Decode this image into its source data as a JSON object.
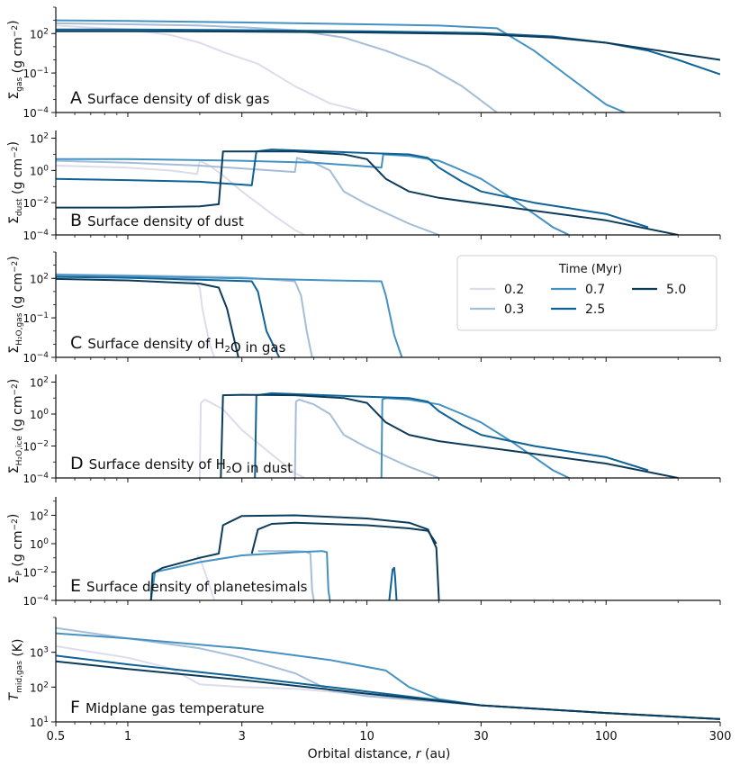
{
  "colors": {
    "0.2": "#dcdcec",
    "0.3": "#a4bdd8",
    "0.7": "#4592c2",
    "2.5": "#0f6296",
    "5.0": "#0d3b5a",
    "axis": "#111111"
  },
  "figure": {
    "xlabel": "Orbital distance, r (au)",
    "xlim": [
      0.5,
      300
    ],
    "xticks": [
      {
        "value": 0.5,
        "label": "0.5"
      },
      {
        "value": 1,
        "label": "1"
      },
      {
        "value": 3,
        "label": "3"
      },
      {
        "value": 10,
        "label": "10"
      },
      {
        "value": 30,
        "label": "30"
      },
      {
        "value": 100,
        "label": "100"
      },
      {
        "value": 300,
        "label": "300"
      }
    ]
  },
  "legend": {
    "title": "Time (Myr)",
    "entries": [
      {
        "label": "0.2",
        "color": "#dcdcec"
      },
      {
        "label": "0.3",
        "color": "#a4bdd8"
      },
      {
        "label": "0.7",
        "color": "#4592c2"
      },
      {
        "label": "2.5",
        "color": "#0f6296"
      },
      {
        "label": "5.0",
        "color": "#0d3b5a"
      }
    ]
  },
  "chart_data": [
    {
      "type": "line",
      "panel": "A",
      "title": "Surface density of disk gas",
      "ylabel": "Σgas (g cm−2)",
      "yscale": "log",
      "ylim": [
        0.0001,
        10000
      ],
      "ytick_labels": [
        "10^2",
        "10^-1",
        "10^-4"
      ],
      "series": [
        {
          "name": "0.2",
          "x": [
            0.5,
            1,
            1.5,
            2,
            2.5,
            3.5,
            5,
            7,
            10
          ],
          "y": [
            400,
            200,
            80,
            20,
            4,
            0.5,
            0.01,
            0.0005,
            0.0001
          ]
        },
        {
          "name": "0.3",
          "x": [
            0.5,
            1,
            2,
            3,
            5,
            8,
            12,
            18,
            25,
            35
          ],
          "y": [
            600,
            500,
            400,
            300,
            180,
            50,
            5,
            0.3,
            0.01,
            0.0001
          ]
        },
        {
          "name": "0.7",
          "x": [
            0.5,
            1,
            3,
            10,
            20,
            35,
            50,
            70,
            100,
            120
          ],
          "y": [
            1000,
            900,
            700,
            500,
            400,
            250,
            5,
            0.05,
            0.0004,
            0.0001
          ]
        },
        {
          "name": "2.5",
          "x": [
            0.5,
            1,
            3,
            10,
            30,
            60,
            100,
            150,
            200,
            300
          ],
          "y": [
            200,
            200,
            180,
            150,
            110,
            60,
            20,
            5,
            1,
            0.08
          ]
        },
        {
          "name": "5.0",
          "x": [
            0.5,
            1,
            3,
            10,
            30,
            60,
            100,
            200,
            300
          ],
          "y": [
            150,
            150,
            140,
            120,
            90,
            50,
            20,
            3,
            1
          ]
        }
      ]
    },
    {
      "type": "line",
      "panel": "B",
      "title": "Surface density of dust",
      "ylabel": "Σdust (g cm−2)",
      "yscale": "log",
      "ylim": [
        0.0001,
        300
      ],
      "ytick_labels": [
        "10^2",
        "10^0",
        "10^-2",
        "10^-4"
      ],
      "series": [
        {
          "name": "0.2",
          "x": [
            0.5,
            1,
            1.5,
            1.95,
            2.0,
            2.2,
            2.5,
            3,
            4,
            5,
            5.5
          ],
          "y": [
            2,
            1.5,
            1,
            0.6,
            4,
            2,
            0.5,
            0.05,
            0.002,
            0.0002,
            0.0001
          ]
        },
        {
          "name": "0.3",
          "x": [
            0.5,
            1,
            2,
            4,
            5.0,
            5.1,
            6,
            7,
            8,
            10,
            15,
            20
          ],
          "y": [
            4,
            3,
            2,
            1,
            0.8,
            6,
            3,
            1,
            0.05,
            0.008,
            0.0005,
            0.0001
          ]
        },
        {
          "name": "0.7",
          "x": [
            0.5,
            1,
            3,
            6,
            9,
            11.5,
            11.7,
            15,
            20,
            25,
            30,
            40,
            50,
            60,
            70
          ],
          "y": [
            5,
            5,
            4,
            3,
            2,
            1.5,
            10,
            8,
            4,
            1,
            0.3,
            0.02,
            0.002,
            0.0003,
            0.0001
          ]
        },
        {
          "name": "2.5",
          "x": [
            0.5,
            1,
            2,
            3.3,
            3.45,
            4,
            10,
            15,
            18,
            20,
            25,
            30,
            50,
            100,
            150
          ],
          "y": [
            0.3,
            0.25,
            0.2,
            0.12,
            15,
            20,
            12,
            10,
            6,
            1.5,
            0.2,
            0.05,
            0.01,
            0.002,
            0.0003
          ]
        },
        {
          "name": "5.0",
          "x": [
            0.5,
            1,
            2,
            2.4,
            2.5,
            5,
            8,
            10,
            12,
            15,
            20,
            40,
            100,
            200
          ],
          "y": [
            0.005,
            0.005,
            0.006,
            0.008,
            15,
            15,
            10,
            5,
            0.3,
            0.05,
            0.02,
            0.005,
            0.0008,
            0.0001
          ]
        }
      ]
    },
    {
      "type": "line",
      "panel": "C",
      "title": "Surface density of H2O in gas",
      "ylabel": "ΣH2O,gas (g cm−2)",
      "yscale": "log",
      "ylim": [
        0.0001,
        10000
      ],
      "ytick_labels": [
        "10^2",
        "10^-1",
        "10^-4"
      ],
      "series": [
        {
          "name": "0.2",
          "x": [
            0.5,
            1,
            1.5,
            1.9,
            2.0,
            2.05,
            2.2,
            2.3
          ],
          "y": [
            150,
            120,
            90,
            60,
            20,
            0.5,
            0.001,
            0.0001
          ]
        },
        {
          "name": "0.3",
          "x": [
            0.5,
            1,
            3,
            5.0,
            5.3,
            5.6,
            5.9
          ],
          "y": [
            200,
            170,
            120,
            60,
            5,
            0.01,
            0.0001
          ]
        },
        {
          "name": "0.7",
          "x": [
            0.5,
            1,
            3,
            7,
            11.5,
            12,
            13,
            14
          ],
          "y": [
            180,
            150,
            100,
            70,
            60,
            5,
            0.005,
            0.0001
          ]
        },
        {
          "name": "2.5",
          "x": [
            0.5,
            1,
            2,
            3.3,
            3.5,
            3.8,
            4.3
          ],
          "y": [
            130,
            110,
            80,
            60,
            10,
            0.01,
            0.0001
          ]
        },
        {
          "name": "5.0",
          "x": [
            0.5,
            1,
            2,
            2.4,
            2.6,
            2.9
          ],
          "y": [
            90,
            70,
            40,
            20,
            0.5,
            0.0001
          ]
        }
      ]
    },
    {
      "type": "line",
      "panel": "D",
      "title": "Surface density of H2O in dust",
      "ylabel": "ΣH2O,ice (g cm−2)",
      "yscale": "log",
      "ylim": [
        0.0001,
        300
      ],
      "ytick_labels": [
        "10^2",
        "10^0",
        "10^-2",
        "10^-4"
      ],
      "series": [
        {
          "name": "0.2",
          "x": [
            2.0,
            2.02,
            2.1,
            2.5,
            3,
            4,
            5,
            5.5
          ],
          "y": [
            0.0001,
            5,
            8,
            2,
            0.1,
            0.003,
            0.0002,
            0.0001
          ]
        },
        {
          "name": "0.3",
          "x": [
            5.0,
            5.05,
            5.2,
            6,
            7,
            8,
            10,
            15,
            20
          ],
          "y": [
            0.0001,
            6,
            8,
            4,
            1,
            0.05,
            0.008,
            0.0005,
            0.0001
          ]
        },
        {
          "name": "0.7",
          "x": [
            11.5,
            11.6,
            12,
            15,
            20,
            25,
            30,
            40,
            50,
            60,
            70
          ],
          "y": [
            0.0001,
            8,
            10,
            8,
            4,
            1,
            0.3,
            0.02,
            0.002,
            0.0003,
            0.0001
          ]
        },
        {
          "name": "2.5",
          "x": [
            3.4,
            3.45,
            4,
            10,
            15,
            18,
            20,
            25,
            30,
            50,
            100,
            150
          ],
          "y": [
            0.0001,
            15,
            20,
            12,
            10,
            6,
            1.5,
            0.2,
            0.05,
            0.01,
            0.002,
            0.0003
          ]
        },
        {
          "name": "5.0",
          "x": [
            2.45,
            2.5,
            3,
            5,
            8,
            10,
            12,
            15,
            20,
            40,
            100,
            200
          ],
          "y": [
            0.0001,
            15,
            16,
            15,
            10,
            5,
            0.3,
            0.05,
            0.02,
            0.005,
            0.0008,
            0.0001
          ]
        }
      ]
    },
    {
      "type": "line",
      "panel": "E",
      "title": "Surface density of planetesimals",
      "ylabel": "ΣP (g cm−2)",
      "yscale": "log",
      "ylim": [
        0.0001,
        2000
      ],
      "ytick_labels": [
        "10^2",
        "10^0",
        "10^-2",
        "10^-4"
      ],
      "series": [
        {
          "name": "0.2",
          "x": [
            1.95,
            2.0,
            2.1,
            2.2,
            2.3
          ],
          "y": [
            0.15,
            0.1,
            0.01,
            0.001,
            0.0001
          ]
        },
        {
          "name": "0.3",
          "x": [
            3.5,
            5,
            5.5,
            5.8,
            5.9,
            6.0
          ],
          "y": [
            0.3,
            0.3,
            0.28,
            0.2,
            0.0005,
            0.0001
          ]
        },
        {
          "name": "0.7",
          "x": [
            1.25,
            1.3,
            2,
            3,
            5,
            6.5,
            6.8,
            6.9,
            7.0
          ],
          "y": [
            0.0001,
            0.01,
            0.05,
            0.15,
            0.25,
            0.3,
            0.25,
            0.0005,
            0.0001
          ]
        },
        {
          "name": "2.5",
          "x": [
            12.4,
            12.8,
            13.0,
            13.1,
            13.3
          ],
          "y": [
            0.0001,
            0.015,
            0.02,
            0.005,
            0.0001
          ]
        },
        {
          "name": "5.0",
          "x": [
            1.25,
            1.27,
            1.4,
            2.0,
            2.4,
            2.5,
            3,
            5,
            10,
            15,
            18,
            19.5,
            20
          ],
          "y": [
            0.0001,
            0.008,
            0.02,
            0.1,
            0.2,
            20,
            90,
            100,
            60,
            30,
            10,
            0.5,
            0.0001
          ]
        },
        {
          "name": "5.0 (upper)",
          "x": [
            3.3,
            3.5,
            4,
            5,
            10,
            15,
            18,
            19.5
          ],
          "y": [
            0.2,
            10,
            25,
            30,
            20,
            12,
            8,
            1
          ]
        }
      ]
    },
    {
      "type": "line",
      "panel": "F",
      "title": "Midplane gas temperature",
      "ylabel": "Tmid,gas (K)",
      "yscale": "log",
      "ylim": [
        10,
        10000
      ],
      "ytick_labels": [
        "10^3",
        "10^2",
        "10^1"
      ],
      "series": [
        {
          "name": "0.2",
          "x": [
            0.5,
            1,
            1.5,
            2,
            3,
            5,
            10,
            30,
            100,
            300
          ],
          "y": [
            1500,
            700,
            350,
            120,
            100,
            90,
            60,
            30,
            18,
            12
          ]
        },
        {
          "name": "0.3",
          "x": [
            0.5,
            1,
            2,
            3,
            5,
            7,
            10,
            30,
            100,
            300
          ],
          "y": [
            5000,
            2500,
            1300,
            700,
            250,
            80,
            55,
            30,
            18,
            12
          ]
        },
        {
          "name": "0.7",
          "x": [
            0.5,
            1,
            3,
            7,
            12,
            15,
            20,
            30,
            100,
            300
          ],
          "y": [
            3500,
            2500,
            1300,
            600,
            300,
            100,
            45,
            30,
            18,
            12
          ]
        },
        {
          "name": "2.5",
          "x": [
            0.5,
            1,
            3,
            10,
            30,
            100,
            300
          ],
          "y": [
            800,
            450,
            200,
            75,
            30,
            18,
            12
          ]
        },
        {
          "name": "5.0",
          "x": [
            0.5,
            1,
            3,
            10,
            30,
            100,
            300
          ],
          "y": [
            550,
            330,
            160,
            65,
            30,
            18,
            12
          ]
        }
      ]
    }
  ]
}
